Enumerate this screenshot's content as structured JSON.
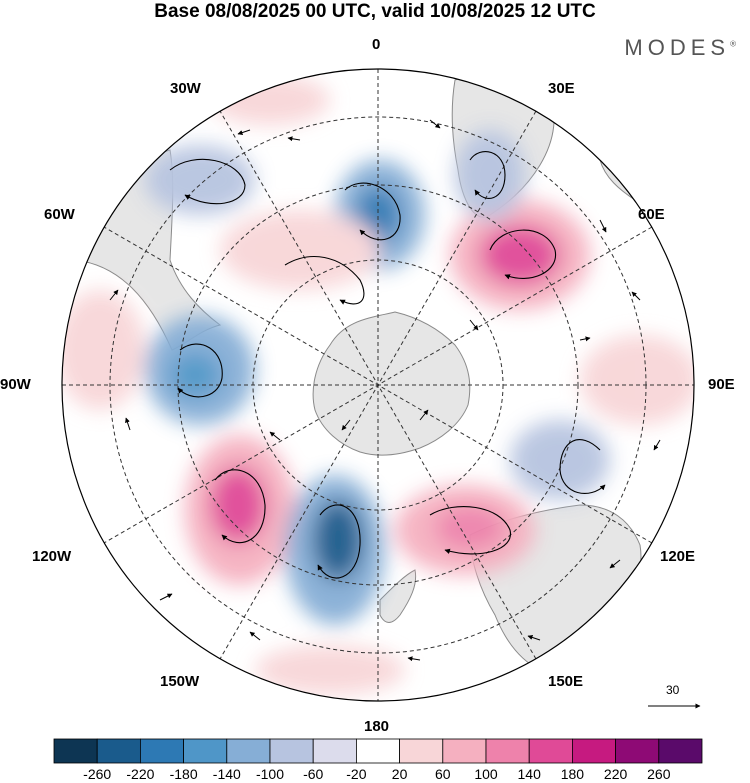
{
  "title": "Base 08/08/2025 00 UTC, valid 10/08/2025 12 UTC",
  "brand": "MODES",
  "brand_mark": "®",
  "longitude_labels": {
    "n0": "0",
    "n30e": "30E",
    "n60e": "60E",
    "n90e": "90E",
    "n120e": "120E",
    "n150e": "150E",
    "n180": "180",
    "n150w": "150W",
    "n120w": "120W",
    "n90w": "90W",
    "n60w": "60W",
    "n30w": "30W"
  },
  "reference_vector": "30",
  "colorbar": {
    "ticks": [
      "-260",
      "-220",
      "-180",
      "-140",
      "-100",
      "-60",
      "-20",
      "20",
      "60",
      "100",
      "140",
      "180",
      "220",
      "260"
    ],
    "colors": [
      "#0d3553",
      "#1a5b8c",
      "#2d79b4",
      "#4f96c8",
      "#86aed6",
      "#b7c4e0",
      "#dcdcec",
      "#ffffff",
      "#f8d6d8",
      "#f5b0c0",
      "#ee82ab",
      "#e04a97",
      "#c61a80",
      "#8e0a75",
      "#5a0a6a"
    ]
  },
  "colors": {
    "ocean": "#ffffff",
    "land": "#e6e6e6",
    "coast": "#7a7a7a"
  }
}
